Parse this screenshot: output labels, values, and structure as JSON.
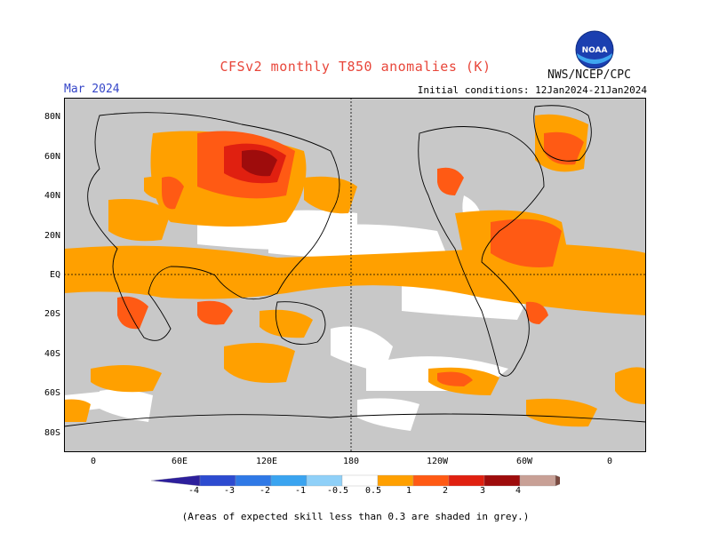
{
  "title": "CFSv2 monthly T850 anomalies (K)",
  "month": "Mar 2024",
  "initial_conditions": "Initial conditions: 12Jan2024-21Jan2024",
  "organization": "NWS/NCEP/CPC",
  "logo_text": "NOAA",
  "footnote": "(Areas of expected skill less than 0.3 are shaded in grey.)",
  "lat_labels": [
    "80N",
    "60N",
    "40N",
    "20N",
    "EQ",
    "20S",
    "40S",
    "60S",
    "80S"
  ],
  "lon_labels": [
    "0",
    "60E",
    "120E",
    "180",
    "120W",
    "60W",
    "0"
  ],
  "colorbar": {
    "labels": [
      "-4",
      "-3",
      "-2",
      "-1",
      "-0.5",
      "0.5",
      "1",
      "2",
      "3",
      "4"
    ],
    "colors": [
      "#2d1f9c",
      "#2d4bd0",
      "#2f79e6",
      "#3aa4f0",
      "#8fd0f8",
      "#ffffff",
      "#ffa000",
      "#ff5a14",
      "#e02010",
      "#9e0c0c",
      "#c8a096",
      "#7a4a40"
    ]
  },
  "colors": {
    "grey_skill": "#c8c8c8",
    "ocean_white": "#ffffff"
  }
}
